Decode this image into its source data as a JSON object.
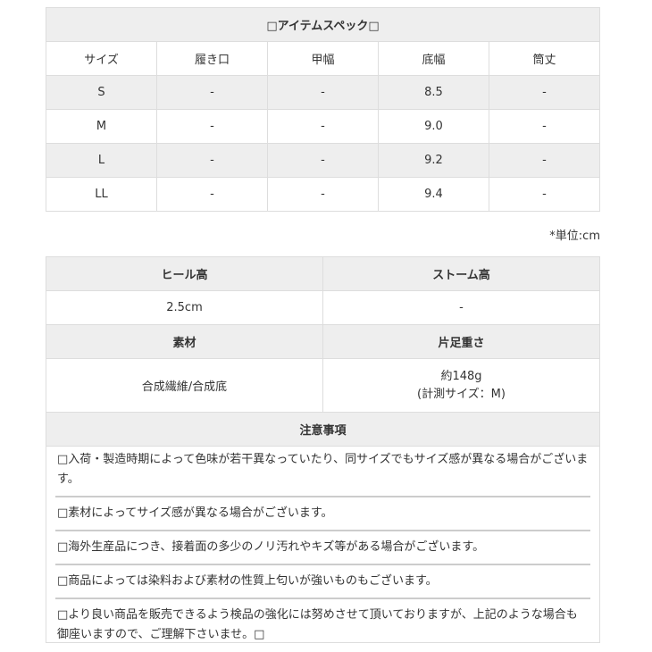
{
  "spec": {
    "title": "□アイテムスペック□",
    "headers": [
      "サイズ",
      "履き口",
      "甲幅",
      "底幅",
      "筒丈"
    ],
    "rows": [
      [
        "S",
        "-",
        "-",
        "8.5",
        "-"
      ],
      [
        "M",
        "-",
        "-",
        "9.0",
        "-"
      ],
      [
        "L",
        "-",
        "-",
        "9.2",
        "-"
      ],
      [
        "LL",
        "-",
        "-",
        "9.4",
        "-"
      ]
    ],
    "unit": "*単位:cm"
  },
  "details": {
    "heel_label": "ヒール高",
    "storm_label": "ストーム高",
    "heel_value": "2.5cm",
    "storm_value": "-",
    "material_label": "素材",
    "weight_label": "片足重さ",
    "material_value": "合成繊維/合成底",
    "weight_value": "約148g",
    "weight_note": "(計測サイズ：M)"
  },
  "notes": {
    "title": "注意事項",
    "items": [
      "□入荷・製造時期によって色味が若干異なっていたり、同サイズでもサイズ感が異なる場合がございます。",
      "□素材によってサイズ感が異なる場合がございます。",
      "□海外生産品につき、接着面の多少のノリ汚れやキズ等がある場合がございます。",
      "□商品によっては染料および素材の性質上匂いが強いものもございます。",
      "□より良い商品を販売できるよう検品の強化には努めさせて頂いておりますが、上記のような場合も御座いますので、ご理解下さいませ。□"
    ]
  }
}
